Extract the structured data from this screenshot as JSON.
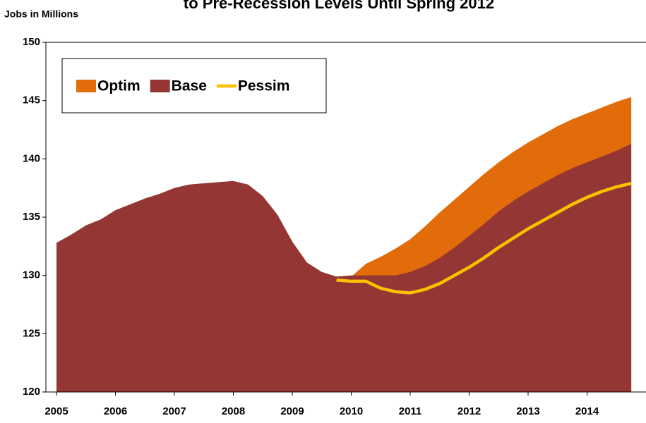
{
  "chart_data": {
    "type": "area",
    "title": "to Pre-Recession Levels Until Spring 2012",
    "y_label": "Jobs in Millions",
    "x": [
      2005,
      2005.25,
      2005.5,
      2005.75,
      2006,
      2006.25,
      2006.5,
      2006.75,
      2007,
      2007.25,
      2007.5,
      2007.75,
      2008,
      2008.25,
      2008.5,
      2008.75,
      2009,
      2009.25,
      2009.5,
      2009.75,
      2010,
      2010.25,
      2010.5,
      2010.75,
      2011,
      2011.25,
      2011.5,
      2011.75,
      2012,
      2012.25,
      2012.5,
      2012.75,
      2013,
      2013.25,
      2013.5,
      2013.75,
      2014,
      2014.25,
      2014.5,
      2014.75
    ],
    "series": [
      {
        "name": "Optim",
        "color": "#e36c0a",
        "kind": "area",
        "values": [
          null,
          null,
          null,
          null,
          null,
          null,
          null,
          null,
          null,
          null,
          null,
          null,
          null,
          null,
          null,
          null,
          null,
          null,
          null,
          129.9,
          129.9,
          131.0,
          131.6,
          132.3,
          133.1,
          134.2,
          135.4,
          136.5,
          137.6,
          138.7,
          139.7,
          140.6,
          141.4,
          142.1,
          142.8,
          143.4,
          143.9,
          144.4,
          144.9,
          145.3
        ]
      },
      {
        "name": "Base",
        "color": "#943634",
        "kind": "area",
        "values": [
          132.8,
          133.5,
          134.3,
          134.8,
          135.6,
          136.1,
          136.6,
          137.0,
          137.5,
          137.8,
          137.9,
          138.0,
          138.1,
          137.8,
          136.8,
          135.2,
          132.9,
          131.1,
          130.3,
          129.9,
          130.0,
          130.0,
          130.0,
          130.0,
          130.3,
          130.8,
          131.5,
          132.4,
          133.4,
          134.4,
          135.5,
          136.4,
          137.2,
          137.9,
          138.6,
          139.2,
          139.7,
          140.2,
          140.7,
          141.3
        ]
      },
      {
        "name": "Pessim",
        "color": "#ffc000",
        "kind": "line",
        "values": [
          null,
          null,
          null,
          null,
          null,
          null,
          null,
          null,
          null,
          null,
          null,
          null,
          null,
          null,
          null,
          null,
          null,
          null,
          null,
          129.6,
          129.5,
          129.5,
          128.9,
          128.6,
          128.5,
          128.8,
          129.3,
          130.0,
          130.7,
          131.5,
          132.4,
          133.2,
          134.0,
          134.7,
          135.4,
          136.1,
          136.7,
          137.2,
          137.6,
          137.9
        ]
      }
    ],
    "xlim": [
      2004.82,
      2015.0
    ],
    "xticks": [
      2005,
      2006,
      2007,
      2008,
      2009,
      2010,
      2011,
      2012,
      2013,
      2014
    ],
    "ylim": [
      120,
      150
    ],
    "yticks": [
      120,
      125,
      130,
      135,
      140,
      145,
      150
    ],
    "legend": "top-left"
  }
}
